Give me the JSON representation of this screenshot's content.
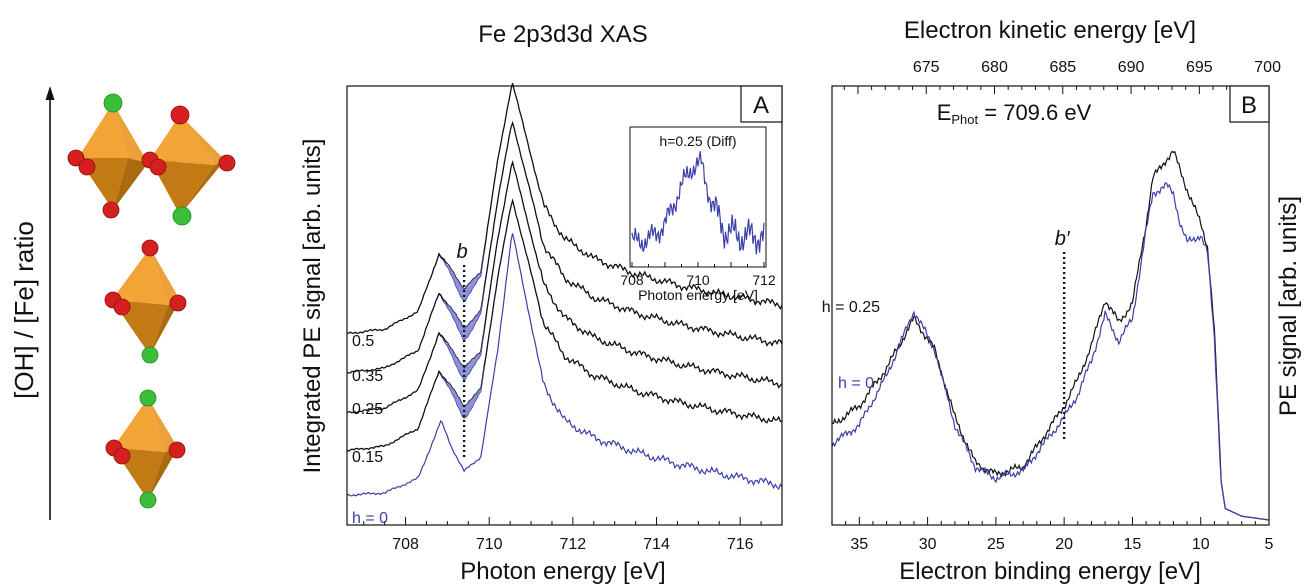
{
  "structure_panel": {
    "axis_label": "[OH] / [Fe] ratio"
  },
  "chart_data": [
    {
      "panel": "A",
      "type": "line",
      "title": "Fe 2p3d3d XAS",
      "xlabel": "Photon energy [eV]",
      "ylabel": "Integrated PE signal [arb. units]",
      "xlim": [
        706.6,
        717.0
      ],
      "x_ticks": [
        708,
        710,
        712,
        714,
        716
      ],
      "y_scale": "arbitrary, offset stacked",
      "grid": false,
      "annotation": "b",
      "annotation_x": 709.4,
      "colors": {
        "measured": "#111111",
        "reference": "#3b3fa8",
        "shaded": "#7b7fd0"
      },
      "series": [
        {
          "name": "h = 0",
          "points": [
            [
              706.6,
              0.02
            ],
            [
              707.5,
              0.03
            ],
            [
              708.3,
              0.09
            ],
            [
              708.85,
              0.33
            ],
            [
              709.1,
              0.22
            ],
            [
              709.4,
              0.12
            ],
            [
              709.8,
              0.18
            ],
            [
              710.2,
              0.62
            ],
            [
              710.55,
              1.12
            ],
            [
              710.9,
              0.82
            ],
            [
              711.3,
              0.48
            ],
            [
              711.8,
              0.33
            ],
            [
              712.5,
              0.26
            ],
            [
              713.5,
              0.2
            ],
            [
              714.5,
              0.15
            ],
            [
              715.5,
              0.11
            ],
            [
              717.0,
              0.06
            ]
          ]
        },
        {
          "name": "0.15",
          "points": [
            [
              706.6,
              0.02
            ],
            [
              707.5,
              0.04
            ],
            [
              708.3,
              0.12
            ],
            [
              708.8,
              0.38
            ],
            [
              709.1,
              0.31
            ],
            [
              709.4,
              0.22
            ],
            [
              709.8,
              0.3
            ],
            [
              710.2,
              0.8
            ],
            [
              710.55,
              1.16
            ],
            [
              710.9,
              0.9
            ],
            [
              711.3,
              0.6
            ],
            [
              711.8,
              0.45
            ],
            [
              712.5,
              0.36
            ],
            [
              713.5,
              0.29
            ],
            [
              714.5,
              0.24
            ],
            [
              715.5,
              0.2
            ],
            [
              717.0,
              0.15
            ]
          ]
        },
        {
          "name": "0.25",
          "points": [
            [
              706.6,
              0.02
            ],
            [
              707.5,
              0.04
            ],
            [
              708.3,
              0.12
            ],
            [
              708.8,
              0.38
            ],
            [
              709.1,
              0.31
            ],
            [
              709.4,
              0.22
            ],
            [
              709.8,
              0.3
            ],
            [
              710.2,
              0.8
            ],
            [
              710.55,
              1.16
            ],
            [
              710.9,
              0.9
            ],
            [
              711.3,
              0.6
            ],
            [
              711.8,
              0.45
            ],
            [
              712.5,
              0.36
            ],
            [
              713.5,
              0.29
            ],
            [
              714.5,
              0.24
            ],
            [
              715.5,
              0.2
            ],
            [
              717.0,
              0.15
            ]
          ]
        },
        {
          "name": "0.35",
          "points": [
            [
              706.6,
              0.02
            ],
            [
              707.5,
              0.04
            ],
            [
              708.3,
              0.12
            ],
            [
              708.8,
              0.38
            ],
            [
              709.1,
              0.31
            ],
            [
              709.4,
              0.22
            ],
            [
              709.8,
              0.3
            ],
            [
              710.2,
              0.8
            ],
            [
              710.55,
              1.16
            ],
            [
              710.9,
              0.9
            ],
            [
              711.3,
              0.6
            ],
            [
              711.8,
              0.45
            ],
            [
              712.5,
              0.36
            ],
            [
              713.5,
              0.29
            ],
            [
              714.5,
              0.24
            ],
            [
              715.5,
              0.2
            ],
            [
              717.0,
              0.15
            ]
          ]
        },
        {
          "name": "0.5",
          "points": [
            [
              706.6,
              0.02
            ],
            [
              707.5,
              0.04
            ],
            [
              708.3,
              0.12
            ],
            [
              708.8,
              0.38
            ],
            [
              709.1,
              0.31
            ],
            [
              709.4,
              0.22
            ],
            [
              709.8,
              0.3
            ],
            [
              710.2,
              0.8
            ],
            [
              710.55,
              1.16
            ],
            [
              710.9,
              0.9
            ],
            [
              711.3,
              0.6
            ],
            [
              711.8,
              0.45
            ],
            [
              712.5,
              0.36
            ],
            [
              713.5,
              0.29
            ],
            [
              714.5,
              0.24
            ],
            [
              715.5,
              0.2
            ],
            [
              717.0,
              0.15
            ]
          ]
        }
      ],
      "labels": [
        "0.5",
        "0.35",
        "0.25",
        "0.15",
        "h = 0"
      ],
      "inset": {
        "type": "line",
        "title": "h=0.25 (Diff)",
        "xlabel": "Photon energy [eV]",
        "xlim": [
          708,
          712
        ],
        "x_ticks": [
          708,
          710,
          712
        ],
        "points": [
          [
            708,
            0.2
          ],
          [
            708.5,
            0.22
          ],
          [
            709.0,
            0.35
          ],
          [
            709.4,
            0.62
          ],
          [
            709.8,
            0.85
          ],
          [
            710.1,
            0.88
          ],
          [
            710.4,
            0.55
          ],
          [
            710.8,
            0.3
          ],
          [
            711.3,
            0.25
          ],
          [
            712,
            0.25
          ]
        ]
      }
    },
    {
      "panel": "B",
      "type": "line",
      "title": "",
      "annotation_text": "E_Phot = 709.6 eV",
      "energy_label_base": "E",
      "energy_label_sub": "Phot",
      "energy_label_value": " = 709.6 eV",
      "xlabel": "Electron binding energy [eV]",
      "x2label": "Electron kinetic energy [eV]",
      "ylabel": "PE signal [arb. units]",
      "xlim": [
        37,
        5
      ],
      "x_ticks": [
        35,
        30,
        25,
        20,
        15,
        10,
        5
      ],
      "x2_ticks": [
        675,
        680,
        685,
        690,
        695,
        700
      ],
      "x2_relation": "kinetic = 709.6 - binding - 4.5",
      "grid": false,
      "annotation": "b′",
      "annotation_x": 20,
      "series": [
        {
          "name": "h = 0.25",
          "color": "#111111",
          "points": [
            [
              37,
              0.25
            ],
            [
              35,
              0.3
            ],
            [
              33,
              0.4
            ],
            [
              31,
              0.53
            ],
            [
              29.5,
              0.45
            ],
            [
              28,
              0.27
            ],
            [
              26.5,
              0.15
            ],
            [
              25,
              0.12
            ],
            [
              23,
              0.14
            ],
            [
              21.5,
              0.22
            ],
            [
              20,
              0.3
            ],
            [
              19,
              0.37
            ],
            [
              18,
              0.46
            ],
            [
              17,
              0.58
            ],
            [
              16,
              0.52
            ],
            [
              15,
              0.57
            ],
            [
              14,
              0.78
            ],
            [
              13.5,
              0.9
            ],
            [
              12.5,
              0.95
            ],
            [
              12,
              0.97
            ],
            [
              11,
              0.87
            ],
            [
              10,
              0.78
            ],
            [
              9.5,
              0.72
            ],
            [
              9,
              0.5
            ],
            [
              8.5,
              0.1
            ],
            [
              8.2,
              0.03
            ],
            [
              7,
              0.01
            ],
            [
              5,
              0
            ]
          ]
        },
        {
          "name": "h = 0",
          "color": "#3b3fa8",
          "points": [
            [
              37,
              0.2
            ],
            [
              35,
              0.25
            ],
            [
              33,
              0.38
            ],
            [
              31,
              0.55
            ],
            [
              29.5,
              0.45
            ],
            [
              28,
              0.25
            ],
            [
              26.5,
              0.14
            ],
            [
              25,
              0.11
            ],
            [
              23,
              0.13
            ],
            [
              21.5,
              0.2
            ],
            [
              20,
              0.27
            ],
            [
              19,
              0.33
            ],
            [
              18,
              0.42
            ],
            [
              17,
              0.54
            ],
            [
              16,
              0.47
            ],
            [
              15,
              0.53
            ],
            [
              14,
              0.76
            ],
            [
              13.5,
              0.86
            ],
            [
              12.5,
              0.88
            ],
            [
              12,
              0.86
            ],
            [
              11.5,
              0.78
            ],
            [
              11,
              0.73
            ],
            [
              10,
              0.75
            ],
            [
              9.5,
              0.7
            ],
            [
              9,
              0.48
            ],
            [
              8.5,
              0.1
            ],
            [
              8.2,
              0.03
            ],
            [
              7,
              0.01
            ],
            [
              5,
              0
            ]
          ]
        }
      ],
      "labels": [
        "h = 0.25",
        "h = 0"
      ]
    }
  ]
}
